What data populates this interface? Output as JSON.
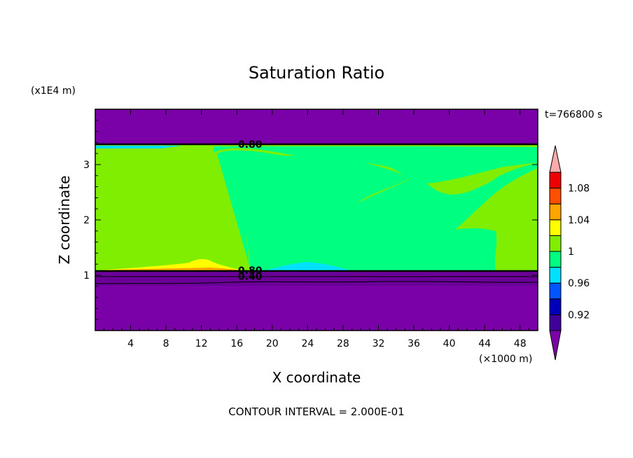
{
  "chart_data": {
    "type": "heatmap",
    "title": "Saturation Ratio",
    "xlabel": "X coordinate",
    "ylabel": "Z coordinate",
    "x_unit": "(×1000 m)",
    "y_unit": "(x1E4 m)",
    "time_label": "t=766800 s",
    "footer": "CONTOUR INTERVAL = 2.000E-01",
    "xlim": [
      0,
      50
    ],
    "ylim": [
      0,
      4
    ],
    "x_ticks": [
      4,
      8,
      12,
      16,
      20,
      24,
      28,
      32,
      36,
      40,
      44,
      48
    ],
    "y_ticks": [
      1,
      2,
      3
    ],
    "contour_labels": [
      {
        "text": "0.80",
        "x": 17.5,
        "y": 3.37
      },
      {
        "text": "0.80",
        "x": 17.5,
        "y": 1.09
      },
      {
        "text": "0.40",
        "x": 17.5,
        "y": 0.98
      }
    ],
    "colorbar": {
      "levels": [
        {
          "range": "<0.90",
          "color": "#7a00a8"
        },
        {
          "range": "0.90-0.92",
          "color": "#400099"
        },
        {
          "range": "0.92-0.94",
          "color": "#0000bb"
        },
        {
          "range": "0.94-0.96",
          "color": "#0055ff"
        },
        {
          "range": "0.96-0.98",
          "color": "#00e0ff"
        },
        {
          "range": "0.98-1.00",
          "color": "#00ff80"
        },
        {
          "range": "1.00-1.02",
          "color": "#80ee00"
        },
        {
          "range": "1.02-1.04",
          "color": "#ffff00"
        },
        {
          "range": "1.04-1.06",
          "color": "#ffa500"
        },
        {
          "range": "1.06-1.08",
          "color": "#ff5000"
        },
        {
          "range": "1.08-1.10",
          "color": "#ee0000"
        },
        {
          "range": ">1.10",
          "color": "#ffaaaa"
        }
      ],
      "tick_labels": [
        "1.08",
        "1.04",
        "1",
        "0.96",
        "0.92"
      ]
    },
    "regions": {
      "supersaturated_green": {
        "value": "1.00-1.02",
        "color": "#80ee00"
      },
      "subsaturated_spring": {
        "value": "0.98-1.00",
        "color": "#00ff80"
      },
      "dry_layers": {
        "value": "<0.90",
        "color": "#7a00a8"
      }
    }
  }
}
